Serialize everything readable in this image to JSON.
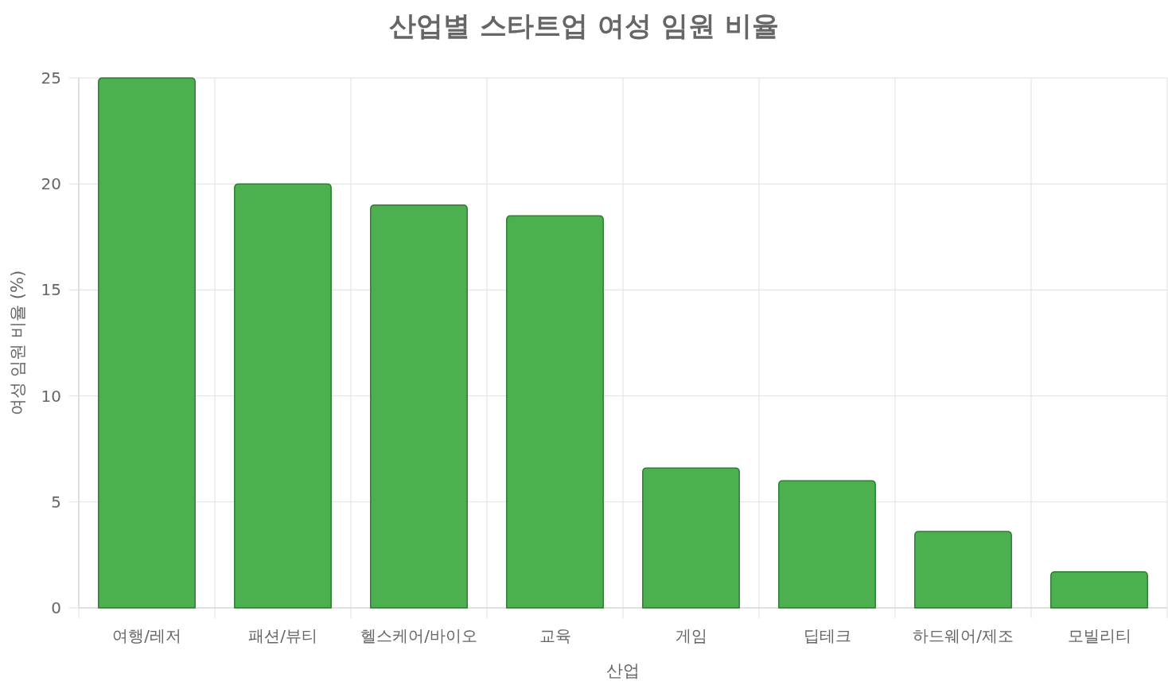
{
  "chart_data": {
    "type": "bar",
    "title": "산업별 스타트업 여성 임원 비율",
    "xlabel": "산업",
    "ylabel": "여성 임원 비율 (%)",
    "categories": [
      "여행/레저",
      "패션/뷰티",
      "헬스케어/바이오",
      "교육",
      "게임",
      "딥테크",
      "하드웨어/제조",
      "모빌리티"
    ],
    "series": [
      {
        "color": "#4caf50",
        "values": [
          25,
          20,
          19,
          18.5,
          6.6,
          6.0,
          3.6,
          1.7
        ]
      }
    ],
    "ylim": [
      0,
      25
    ],
    "yticks": [
      0,
      5,
      10,
      15,
      20,
      25
    ],
    "grid": true
  }
}
